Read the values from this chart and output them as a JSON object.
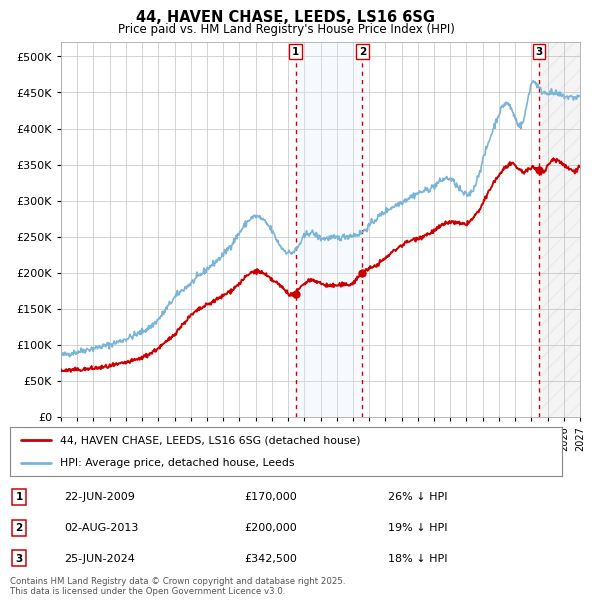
{
  "title": "44, HAVEN CHASE, LEEDS, LS16 6SG",
  "subtitle": "Price paid vs. HM Land Registry's House Price Index (HPI)",
  "ylim": [
    0,
    520000
  ],
  "yticks": [
    0,
    50000,
    100000,
    150000,
    200000,
    250000,
    300000,
    350000,
    400000,
    450000,
    500000
  ],
  "xlim_start": 1995.0,
  "xlim_end": 2027.0,
  "hpi_color": "#7ab4d8",
  "price_color": "#cc0000",
  "vline_color": "#cc0000",
  "shade_color": "#ddeeff",
  "transactions": [
    {
      "date_year": 2009.47,
      "price": 170000,
      "label": "1"
    },
    {
      "date_year": 2013.58,
      "price": 200000,
      "label": "2"
    },
    {
      "date_year": 2024.48,
      "price": 342500,
      "label": "3"
    }
  ],
  "legend_entries": [
    {
      "color": "#cc0000",
      "label": "44, HAVEN CHASE, LEEDS, LS16 6SG (detached house)"
    },
    {
      "color": "#7ab4d8",
      "label": "HPI: Average price, detached house, Leeds"
    }
  ],
  "table_rows": [
    {
      "num": "1",
      "date": "22-JUN-2009",
      "price": "£170,000",
      "note": "26% ↓ HPI"
    },
    {
      "num": "2",
      "date": "02-AUG-2013",
      "price": "£200,000",
      "note": "19% ↓ HPI"
    },
    {
      "num": "3",
      "date": "25-JUN-2024",
      "price": "£342,500",
      "note": "18% ↓ HPI"
    }
  ],
  "footnote": "Contains HM Land Registry data © Crown copyright and database right 2025.\nThis data is licensed under the Open Government Licence v3.0.",
  "background_color": "#ffffff",
  "grid_color": "#cccccc"
}
